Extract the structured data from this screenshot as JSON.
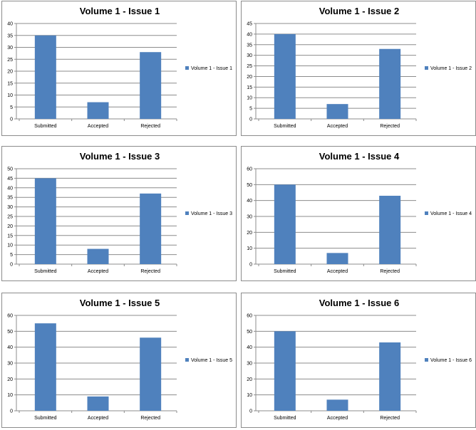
{
  "chart_data": [
    {
      "type": "bar",
      "title": "Volume 1 - Issue 1",
      "categories": [
        "Submitted",
        "Accepted",
        "Rejected"
      ],
      "series": [
        {
          "name": "Volume 1 - Issue 1",
          "values": [
            35,
            7,
            28
          ]
        }
      ],
      "ylim": [
        0,
        40
      ],
      "yticks": [
        0,
        5,
        10,
        15,
        20,
        25,
        30,
        35,
        40
      ],
      "grid": true,
      "legend": "right",
      "color": "#4f81bd"
    },
    {
      "type": "bar",
      "title": "Volume 1 - Issue 2",
      "categories": [
        "Submitted",
        "Accepted",
        "Rejected"
      ],
      "series": [
        {
          "name": "Volume 1 - Issue 2",
          "values": [
            40,
            7,
            33
          ]
        }
      ],
      "ylim": [
        0,
        45
      ],
      "yticks": [
        0,
        5,
        10,
        15,
        20,
        25,
        30,
        35,
        40,
        45
      ],
      "grid": true,
      "legend": "right",
      "color": "#4f81bd"
    },
    {
      "type": "bar",
      "title": "Volume 1 - Issue 3",
      "categories": [
        "Submitted",
        "Accepted",
        "Rejected"
      ],
      "series": [
        {
          "name": "Volume 1 - Issue 3",
          "values": [
            45,
            8,
            37
          ]
        }
      ],
      "ylim": [
        0,
        50
      ],
      "yticks": [
        0,
        5,
        10,
        15,
        20,
        25,
        30,
        35,
        40,
        45,
        50
      ],
      "grid": true,
      "legend": "right",
      "color": "#4f81bd"
    },
    {
      "type": "bar",
      "title": "Volume 1 - Issue 4",
      "categories": [
        "Submitted",
        "Accepted",
        "Rejected"
      ],
      "series": [
        {
          "name": "Volume 1 - Issue 4",
          "values": [
            50,
            7,
            43
          ]
        }
      ],
      "ylim": [
        0,
        60
      ],
      "yticks": [
        0,
        10,
        20,
        30,
        40,
        50,
        60
      ],
      "grid": true,
      "legend": "right",
      "color": "#4f81bd"
    },
    {
      "type": "bar",
      "title": "Volume 1 - Issue 5",
      "categories": [
        "Submitted",
        "Accepted",
        "Rejected"
      ],
      "series": [
        {
          "name": "Volume 1 - Issue 5",
          "values": [
            55,
            9,
            46
          ]
        }
      ],
      "ylim": [
        0,
        60
      ],
      "yticks": [
        0,
        10,
        20,
        30,
        40,
        50,
        60
      ],
      "grid": true,
      "legend": "right",
      "color": "#4f81bd"
    },
    {
      "type": "bar",
      "title": "Volume 1 - Issue 6",
      "categories": [
        "Submitted",
        "Accepted",
        "Rejected"
      ],
      "series": [
        {
          "name": "Volume 1 - Issue 6",
          "values": [
            50,
            7,
            43
          ]
        }
      ],
      "ylim": [
        0,
        60
      ],
      "yticks": [
        0,
        10,
        20,
        30,
        40,
        50,
        60
      ],
      "grid": true,
      "legend": "right",
      "color": "#4f81bd"
    }
  ]
}
